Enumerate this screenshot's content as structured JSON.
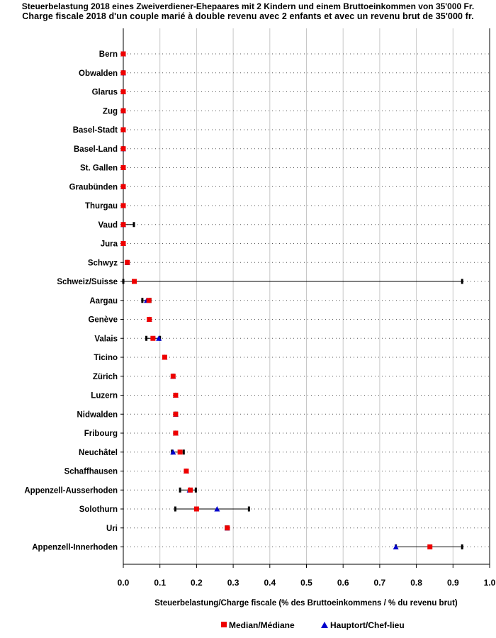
{
  "title_de": "Steuerbelastung 2018 eines Zweiverdiener-Ehepaares mit 2 Kindern und einem Bruttoeinkommen von 35'000 Fr.",
  "title_fr": "Charge fiscale 2018 d'un couple marié à double revenu avec 2 enfants et avec un revenu brut de 35'000 fr.",
  "chart_data": {
    "type": "scatter",
    "orientation": "horizontal",
    "xlabel": "Steuerbelastung/Charge fiscale (% des Bruttoeinkommens / % du revenu brut)",
    "ylabel": "",
    "xlim": [
      0,
      1.0
    ],
    "x_ticks": [
      "0.0",
      "0.1",
      "0.2",
      "0.3",
      "0.4",
      "0.5",
      "0.6",
      "0.7",
      "0.8",
      "0.9",
      "1.0"
    ],
    "grid": {
      "vertical": true,
      "horizontal_dotted": true
    },
    "legend": {
      "position": "bottom",
      "items": [
        {
          "name": "Median/Médiane",
          "marker": "square",
          "color": "#ee0000"
        },
        {
          "name": "Hauptort/Chef-lieu",
          "marker": "triangle",
          "color": "#0000cc"
        }
      ]
    },
    "range_color": "#000000",
    "rows": [
      {
        "name": "Bern",
        "min": 0.0,
        "max": 0.0,
        "median": 0.0,
        "capital": 0.0
      },
      {
        "name": "Obwalden",
        "min": 0.0,
        "max": 0.0,
        "median": 0.0,
        "capital": 0.0
      },
      {
        "name": "Glarus",
        "min": 0.0,
        "max": 0.0,
        "median": 0.0,
        "capital": 0.0
      },
      {
        "name": "Zug",
        "min": 0.0,
        "max": 0.0,
        "median": 0.0,
        "capital": 0.0
      },
      {
        "name": "Basel-Stadt",
        "min": 0.0,
        "max": 0.0,
        "median": 0.0,
        "capital": 0.0
      },
      {
        "name": "Basel-Land",
        "min": 0.0,
        "max": 0.0,
        "median": 0.0,
        "capital": 0.0
      },
      {
        "name": "St. Gallen",
        "min": 0.0,
        "max": 0.0,
        "median": 0.0,
        "capital": 0.0
      },
      {
        "name": "Graubünden",
        "min": 0.0,
        "max": 0.0,
        "median": 0.0,
        "capital": 0.0
      },
      {
        "name": "Thurgau",
        "min": 0.0,
        "max": 0.0,
        "median": 0.0,
        "capital": 0.0
      },
      {
        "name": "Vaud",
        "min": 0.0,
        "max": 0.029,
        "median": 0.0,
        "capital": 0.0
      },
      {
        "name": "Jura",
        "min": 0.0,
        "max": 0.0,
        "median": 0.0,
        "capital": 0.0
      },
      {
        "name": "Schwyz",
        "min": 0.009,
        "max": 0.012,
        "median": 0.011,
        "capital": 0.011
      },
      {
        "name": "Schweiz/Suisse",
        "min": 0.0,
        "max": 0.925,
        "median": 0.03,
        "capital": null
      },
      {
        "name": "Aargau",
        "min": 0.052,
        "max": 0.074,
        "median": 0.07,
        "capital": 0.064
      },
      {
        "name": "Genève",
        "min": 0.07,
        "max": 0.072,
        "median": 0.071,
        "capital": 0.071
      },
      {
        "name": "Valais",
        "min": 0.063,
        "max": 0.1,
        "median": 0.081,
        "capital": 0.097
      },
      {
        "name": "Ticino",
        "min": 0.11,
        "max": 0.115,
        "median": 0.113,
        "capital": 0.113
      },
      {
        "name": "Zürich",
        "min": 0.134,
        "max": 0.138,
        "median": 0.136,
        "capital": 0.136
      },
      {
        "name": "Luzern",
        "min": 0.141,
        "max": 0.144,
        "median": 0.143,
        "capital": 0.143
      },
      {
        "name": "Nidwalden",
        "min": 0.141,
        "max": 0.146,
        "median": 0.143,
        "capital": 0.143
      },
      {
        "name": "Fribourg",
        "min": 0.141,
        "max": 0.146,
        "median": 0.143,
        "capital": 0.143
      },
      {
        "name": "Neuchâtel",
        "min": 0.133,
        "max": 0.165,
        "median": 0.155,
        "capital": 0.136
      },
      {
        "name": "Schaffhausen",
        "min": 0.17,
        "max": 0.174,
        "median": 0.172,
        "capital": 0.172
      },
      {
        "name": "Appenzell-Ausserhoden",
        "min": 0.155,
        "max": 0.198,
        "median": 0.183,
        "capital": 0.181
      },
      {
        "name": "Solothurn",
        "min": 0.142,
        "max": 0.343,
        "median": 0.2,
        "capital": 0.256
      },
      {
        "name": "Uri",
        "min": 0.28,
        "max": 0.286,
        "median": 0.284,
        "capital": 0.284
      },
      {
        "name": "Appenzell-Innerhoden",
        "min": 0.744,
        "max": 0.925,
        "median": 0.837,
        "capital": 0.744
      }
    ]
  }
}
